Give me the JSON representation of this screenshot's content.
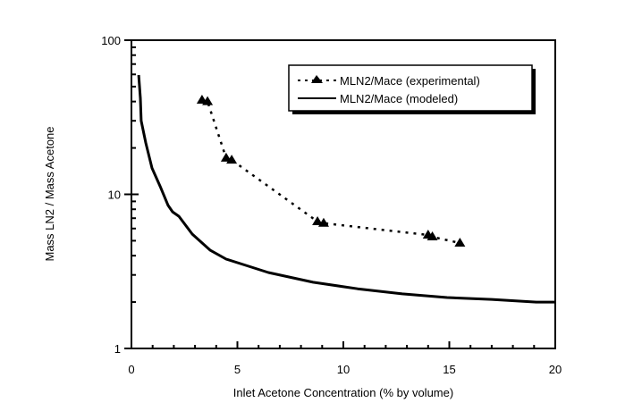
{
  "chart_data": {
    "type": "line",
    "title": "",
    "xlabel": "Inlet Acetone Concentration (% by volume)",
    "ylabel": "Mass LN2 / Mass Acetone",
    "xlim": [
      0,
      20
    ],
    "ylim": [
      1,
      100
    ],
    "yscale": "log",
    "grid": false,
    "legend_position": "top-right",
    "x_ticks": [
      "0",
      "5",
      "10",
      "15",
      "20"
    ],
    "x_tick_values": [
      0,
      5,
      10,
      15,
      20
    ],
    "y_ticks": [
      "1",
      "10",
      "100"
    ],
    "y_tick_values": [
      1,
      10,
      100
    ],
    "series": [
      {
        "name": "MLN2/Mace (experimental)",
        "style": "dotted-triangle",
        "color": "#000000",
        "x": [
          3.33,
          3.59,
          4.47,
          4.73,
          8.78,
          9.07,
          14.0,
          14.2,
          15.5
        ],
        "y": [
          40.9,
          40.0,
          17.2,
          16.7,
          6.66,
          6.5,
          5.45,
          5.3,
          4.83
        ]
      },
      {
        "name": "MLN2/Mace (modeled)",
        "style": "solid",
        "color": "#000000",
        "x": [
          0.34,
          0.42,
          0.46,
          0.68,
          0.97,
          1.39,
          1.73,
          1.94,
          2.24,
          2.87,
          3.71,
          4.47,
          5.4,
          6.46,
          8.57,
          10.67,
          12.78,
          14.89,
          17.0,
          19.1,
          19.96
        ],
        "y": [
          59.4,
          42.0,
          30.0,
          21.5,
          14.8,
          11.0,
          8.47,
          7.7,
          7.2,
          5.52,
          4.35,
          3.8,
          3.46,
          3.11,
          2.69,
          2.44,
          2.26,
          2.14,
          2.08,
          2.0,
          2.0
        ]
      }
    ]
  }
}
